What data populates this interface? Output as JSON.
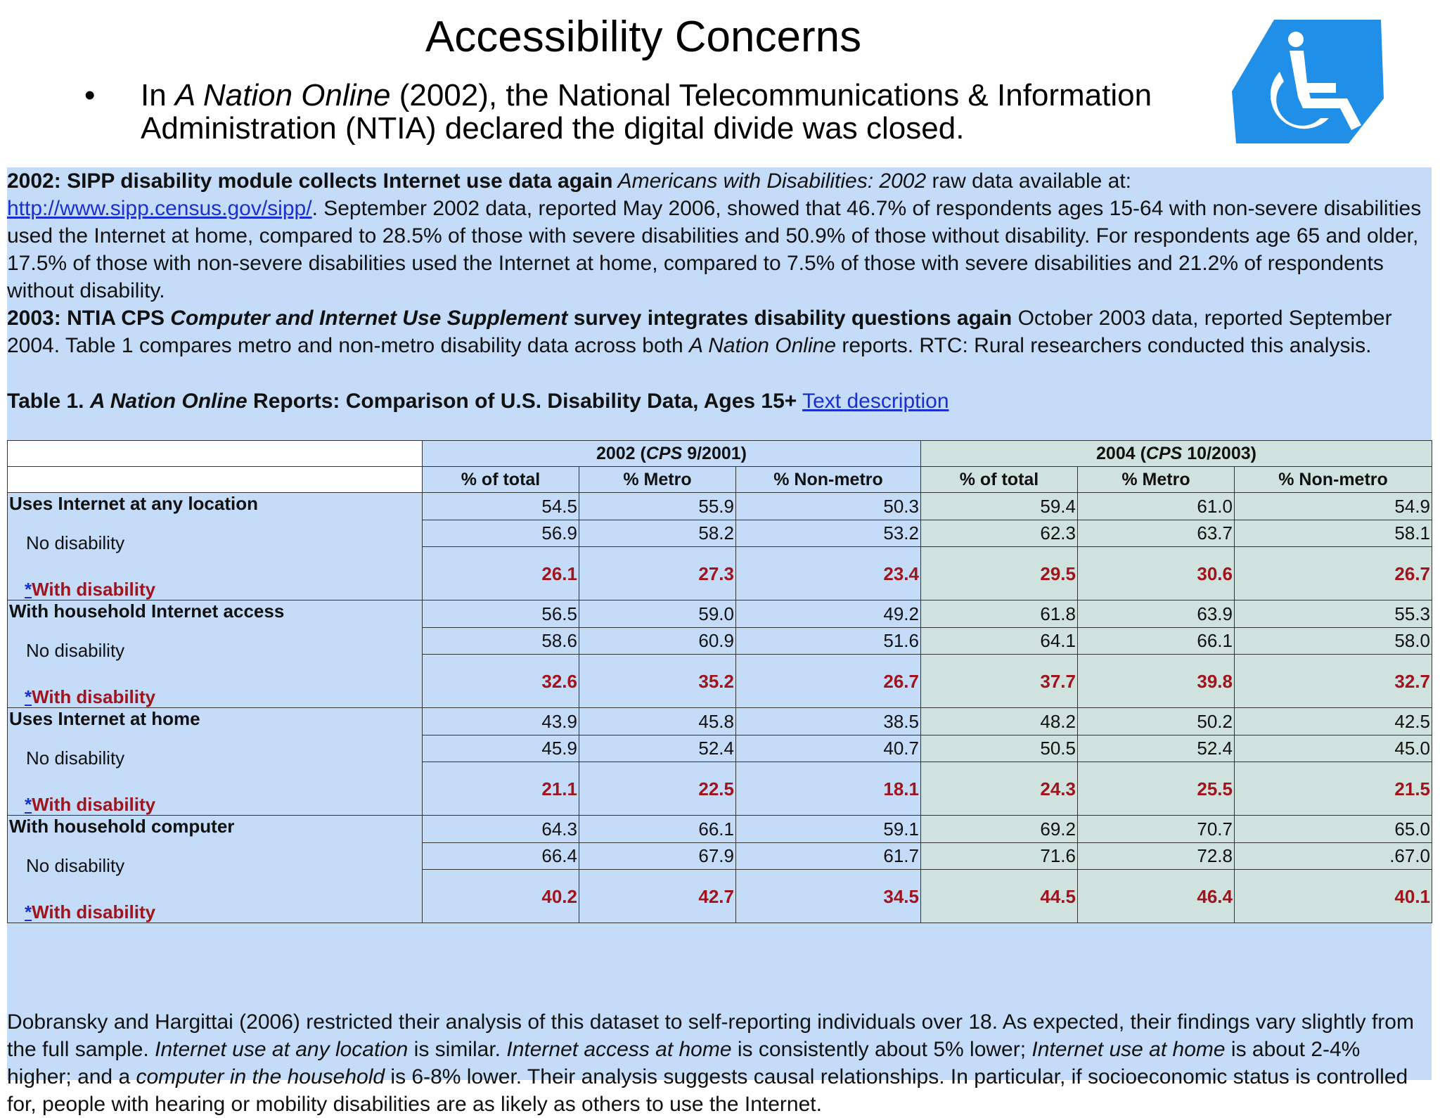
{
  "slide": {
    "title": "Accessibility Concerns",
    "bullet_pre": "In ",
    "bullet_italic": "A Nation Online",
    "bullet_post": " (2002), the National Telecommunications & Information Administration (NTIA) declared the digital divide was closed."
  },
  "logo": {
    "icon": "wheelchair-accessibility-icon",
    "color": "#1f8fe8"
  },
  "panel": {
    "para1": {
      "lead": "2002: SIPP disability module collects Internet use data again",
      "italic": " Americans with Disabilities: 2002",
      "mid": " raw data available at: ",
      "link": "http://www.sipp.census.gov/sipp/",
      "rest": ". September 2002 data, reported May 2006, showed that 46.7% of respondents ages 15-64 with non-severe disabilities used the Internet at home, compared to 28.5% of those with severe disabilities and 50.9% of those without disability. For respondents age 65 and older, 17.5% of those with non-severe disabilities used the Internet at home, compared to 7.5% of those with severe disabilities and 21.2% of respondents without disability."
    },
    "para2": {
      "lead": "2003: NTIA CPS ",
      "lead_italic": "Computer and Internet Use Supplement",
      "lead_end": " survey integrates disability questions again",
      "rest": " October 2003 data, reported September 2004. Table 1 compares metro and non-metro disability data across both ",
      "italic": "A Nation Online",
      "tail": " reports. RTC: Rural researchers conducted this analysis."
    },
    "caption": {
      "pre": "Table 1. ",
      "italic": "A Nation Online",
      "post": " Reports: Comparison of U.S. Disability Data, Ages 15+",
      "link": "Text description"
    },
    "para3": {
      "t1": "Dobransky and Hargittai (2006) restricted their analysis of this dataset to self-reporting individuals over 18. As expected, their findings vary slightly from the full sample. ",
      "i1": "Internet use at any location",
      "t2": " is similar. ",
      "i2": "Internet access at home",
      "t3": " is consistently about 5% lower; ",
      "i3": "Internet use at home",
      "t4": " is about 2-4% higher; and a ",
      "i4": "computer in the household",
      "t5": " is 6-8% lower. Their analysis suggests causal relationships. In particular, if socioeconomic status is controlled for, people with hearing or mobility disabilities are as likely as others to use the Internet."
    }
  },
  "table": {
    "group_2002": {
      "pre": "2002 (",
      "italic": "CPS",
      "post": " 9/2001)"
    },
    "group_2004": {
      "pre": "2004 (",
      "italic": "CPS",
      "post": " 10/2003)"
    },
    "columns": [
      "% of total",
      "% Metro",
      "% Non-metro",
      "% of total",
      "% Metro",
      "% Non-metro"
    ],
    "no_disability_label": "No disability",
    "with_disability_label": "With disability",
    "asterisk": "*",
    "rows": [
      {
        "label": "Uses Internet at any location",
        "total": [
          "54.5",
          "55.9",
          "50.3",
          "59.4",
          "61.0",
          "54.9"
        ],
        "no": [
          "56.9",
          "58.2",
          "53.2",
          "62.3",
          "63.7",
          "58.1"
        ],
        "with": [
          "26.1",
          "27.3",
          "23.4",
          "29.5",
          "30.6",
          "26.7"
        ]
      },
      {
        "label": "With household Internet access",
        "total": [
          "56.5",
          "59.0",
          "49.2",
          "61.8",
          "63.9",
          "55.3"
        ],
        "no": [
          "58.6",
          "60.9",
          "51.6",
          "64.1",
          "66.1",
          "58.0"
        ],
        "with": [
          "32.6",
          "35.2",
          "26.7",
          "37.7",
          "39.8",
          "32.7"
        ]
      },
      {
        "label": "Uses Internet at home",
        "total": [
          "43.9",
          "45.8",
          "38.5",
          "48.2",
          "50.2",
          "42.5"
        ],
        "no": [
          "45.9",
          "52.4",
          "40.7",
          "50.5",
          "52.4",
          "45.0"
        ],
        "with": [
          "21.1",
          "22.5",
          "18.1",
          "24.3",
          "25.5",
          "21.5"
        ]
      },
      {
        "label": "With household computer",
        "total": [
          "64.3",
          "66.1",
          "59.1",
          "69.2",
          "70.7",
          "65.0"
        ],
        "no": [
          "66.4",
          "67.9",
          "61.7",
          "71.6",
          "72.8",
          ".67.0"
        ],
        "with": [
          "40.2",
          "42.7",
          "34.5",
          "44.5",
          "46.4",
          "40.1"
        ]
      }
    ]
  }
}
